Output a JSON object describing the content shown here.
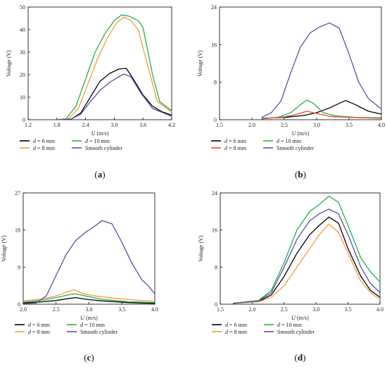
{
  "chart_data": [
    {
      "panel": "a",
      "label_prefix": "(",
      "label_bold": "a",
      "label_suffix": ")",
      "type": "line",
      "xlabel_var": "U",
      "xlabel_unit": "(m/s)",
      "ylabel": "Voltage (V)",
      "xlim": [
        1.2,
        4.2
      ],
      "ylim": [
        0,
        50
      ],
      "xticks": [
        "1.2",
        "1.8",
        "2.4",
        "3.0",
        "3.6",
        "4.2"
      ],
      "yticks": [
        "0",
        "10",
        "20",
        "30",
        "40",
        "50"
      ],
      "legend": [
        {
          "var": "d",
          "text": " = 6 mm"
        },
        {
          "var": "d",
          "text": " = 10 mm"
        },
        {
          "var": "d",
          "text": " = 8 mm"
        },
        {
          "var": "",
          "text": "Smooth cylinder"
        }
      ],
      "series": [
        {
          "color": "#000000",
          "points": [
            [
              1.8,
              0
            ],
            [
              2.1,
              0.3
            ],
            [
              2.3,
              3
            ],
            [
              2.5,
              10
            ],
            [
              2.7,
              17
            ],
            [
              2.9,
              20.5
            ],
            [
              3.1,
              22.5
            ],
            [
              3.25,
              22.8
            ],
            [
              3.4,
              18
            ],
            [
              3.6,
              11
            ],
            [
              3.8,
              6
            ],
            [
              4.0,
              3.5
            ],
            [
              4.2,
              2
            ]
          ]
        },
        {
          "color": "#22b14c",
          "points": [
            [
              1.8,
              0
            ],
            [
              2.0,
              0.5
            ],
            [
              2.2,
              6
            ],
            [
              2.4,
              18
            ],
            [
              2.6,
              30
            ],
            [
              2.8,
              38
            ],
            [
              3.0,
              44
            ],
            [
              3.15,
              46.5
            ],
            [
              3.3,
              46
            ],
            [
              3.5,
              44
            ],
            [
              3.6,
              41
            ],
            [
              3.8,
              20
            ],
            [
              3.95,
              8
            ],
            [
              4.2,
              4
            ]
          ]
        },
        {
          "color": "#f39c3c",
          "points": [
            [
              1.8,
              0
            ],
            [
              2.05,
              0.5
            ],
            [
              2.25,
              5
            ],
            [
              2.45,
              16
            ],
            [
              2.65,
              27
            ],
            [
              2.85,
              36
            ],
            [
              3.05,
              43
            ],
            [
              3.2,
              45.5
            ],
            [
              3.35,
              44
            ],
            [
              3.5,
              40
            ],
            [
              3.7,
              24
            ],
            [
              3.9,
              8
            ],
            [
              4.2,
              3.5
            ]
          ]
        },
        {
          "color": "#5a4fa8",
          "points": [
            [
              1.8,
              0
            ],
            [
              2.1,
              0.3
            ],
            [
              2.3,
              2.5
            ],
            [
              2.5,
              8
            ],
            [
              2.7,
              13
            ],
            [
              2.9,
              16.5
            ],
            [
              3.05,
              18.5
            ],
            [
              3.2,
              20.3
            ],
            [
              3.35,
              19
            ],
            [
              3.55,
              12
            ],
            [
              3.8,
              5
            ],
            [
              4.2,
              1.5
            ]
          ]
        }
      ]
    },
    {
      "panel": "b",
      "label_prefix": "(",
      "label_bold": "b",
      "label_suffix": ")",
      "type": "line",
      "xlabel_var": "U",
      "xlabel_unit": "(m/s)",
      "ylabel": "Voltage (V)",
      "xlim": [
        1.5,
        4.0
      ],
      "ylim": [
        0,
        24
      ],
      "xticks": [
        "1.5",
        "2.0",
        "2.5",
        "3.0",
        "3.5",
        "4.0"
      ],
      "yticks": [
        "0",
        "8",
        "16",
        "24"
      ],
      "legend": [
        {
          "var": "d",
          "text": " = 6 mm"
        },
        {
          "var": "d",
          "text": " = 10 mm"
        },
        {
          "var": "d",
          "text": " = 8 mm"
        },
        {
          "var": "",
          "text": "Smooth cylinder"
        }
      ],
      "series": [
        {
          "color": "#000000",
          "points": [
            [
              2.15,
              0.3
            ],
            [
              2.5,
              0.5
            ],
            [
              2.8,
              0.9
            ],
            [
              3.0,
              1.5
            ],
            [
              3.2,
              2.5
            ],
            [
              3.35,
              3.5
            ],
            [
              3.45,
              4.1
            ],
            [
              3.6,
              3.2
            ],
            [
              3.8,
              1.8
            ],
            [
              4.0,
              1.2
            ]
          ]
        },
        {
          "color": "#22b14c",
          "points": [
            [
              2.15,
              0.2
            ],
            [
              2.4,
              0.5
            ],
            [
              2.6,
              1.5
            ],
            [
              2.75,
              3.2
            ],
            [
              2.85,
              4.2
            ],
            [
              2.95,
              3.5
            ],
            [
              3.1,
              1.5
            ],
            [
              3.3,
              0.8
            ],
            [
              3.6,
              0.5
            ],
            [
              4.0,
              0.4
            ]
          ]
        },
        {
          "color": "#e74c3c",
          "points": [
            [
              2.15,
              0.2
            ],
            [
              2.5,
              0.6
            ],
            [
              2.7,
              1.2
            ],
            [
              2.85,
              1.8
            ],
            [
              3.0,
              1.3
            ],
            [
              3.2,
              0.7
            ],
            [
              3.5,
              0.5
            ],
            [
              4.0,
              0.3
            ]
          ]
        },
        {
          "color": "#5a4fa8",
          "points": [
            [
              2.15,
              0.5
            ],
            [
              2.3,
              1.5
            ],
            [
              2.45,
              4
            ],
            [
              2.6,
              10
            ],
            [
              2.75,
              15.5
            ],
            [
              2.9,
              18.5
            ],
            [
              3.05,
              19.8
            ],
            [
              3.2,
              20.6
            ],
            [
              3.35,
              19.5
            ],
            [
              3.5,
              14
            ],
            [
              3.65,
              8
            ],
            [
              3.8,
              4.5
            ],
            [
              4.0,
              2.3
            ]
          ]
        }
      ]
    },
    {
      "panel": "c",
      "label_prefix": "(",
      "label_bold": "c",
      "label_suffix": ")",
      "type": "line",
      "xlabel_var": "U",
      "xlabel_unit": "(m/s)",
      "ylabel": "Voltage (V)",
      "xlim": [
        2.0,
        4.0
      ],
      "ylim": [
        0,
        27
      ],
      "xticks": [
        "2.0",
        "2.5",
        "3.0",
        "3.5",
        "4.0"
      ],
      "yticks": [
        "0",
        "9",
        "18",
        "27"
      ],
      "legend": [
        {
          "var": "d",
          "text": " = 6 mm"
        },
        {
          "var": "d",
          "text": " = 10 mm"
        },
        {
          "var": "d",
          "text": " = 8 mm"
        },
        {
          "var": "",
          "text": "Smooth cylinder"
        }
      ],
      "series": [
        {
          "color": "#000000",
          "points": [
            [
              2.0,
              0.3
            ],
            [
              2.3,
              0.6
            ],
            [
              2.5,
              0.9
            ],
            [
              2.7,
              1.4
            ],
            [
              2.8,
              1.6
            ],
            [
              2.95,
              1.2
            ],
            [
              3.2,
              0.8
            ],
            [
              3.6,
              0.4
            ],
            [
              4.0,
              0.2
            ]
          ]
        },
        {
          "color": "#22b14c",
          "points": [
            [
              2.0,
              0.5
            ],
            [
              2.3,
              1.0
            ],
            [
              2.5,
              1.6
            ],
            [
              2.7,
              2.3
            ],
            [
              2.8,
              2.5
            ],
            [
              2.95,
              2.0
            ],
            [
              3.2,
              1.2
            ],
            [
              3.6,
              0.6
            ],
            [
              4.0,
              0.4
            ]
          ]
        },
        {
          "color": "#f39c3c",
          "points": [
            [
              2.0,
              0.8
            ],
            [
              2.3,
              1.3
            ],
            [
              2.5,
              2.0
            ],
            [
              2.65,
              2.9
            ],
            [
              2.77,
              3.5
            ],
            [
              2.9,
              2.6
            ],
            [
              3.1,
              2.0
            ],
            [
              3.4,
              1.4
            ],
            [
              3.7,
              1.0
            ],
            [
              4.0,
              0.7
            ]
          ]
        },
        {
          "color": "#5a4fa8",
          "points": [
            [
              2.0,
              0.1
            ],
            [
              2.2,
              0.3
            ],
            [
              2.35,
              2
            ],
            [
              2.5,
              7
            ],
            [
              2.65,
              12
            ],
            [
              2.8,
              15.5
            ],
            [
              2.95,
              17.5
            ],
            [
              3.05,
              18.5
            ],
            [
              3.2,
              20.3
            ],
            [
              3.35,
              19.5
            ],
            [
              3.5,
              15
            ],
            [
              3.65,
              10
            ],
            [
              3.8,
              6
            ],
            [
              3.9,
              4.5
            ],
            [
              4.0,
              2.5
            ]
          ]
        }
      ]
    },
    {
      "panel": "d",
      "label_prefix": "(",
      "label_bold": "d",
      "label_suffix": ")",
      "type": "line",
      "xlabel_var": "U",
      "xlabel_unit": "(m/s)",
      "ylabel": "Voltage (V)",
      "xlim": [
        1.5,
        4.0
      ],
      "ylim": [
        0,
        24
      ],
      "xticks": [
        "1.5",
        "2.0",
        "2.5",
        "3.0",
        "3.5",
        "4.0"
      ],
      "yticks": [
        "0",
        "8",
        "16",
        "24"
      ],
      "legend": [
        {
          "var": "d",
          "text": " = 6 mm"
        },
        {
          "var": "d",
          "text": " = 10 mm"
        },
        {
          "var": "d",
          "text": " = 8 mm"
        },
        {
          "var": "",
          "text": "Smooth cylinder"
        }
      ],
      "series": [
        {
          "color": "#000000",
          "points": [
            [
              1.7,
              0.2
            ],
            [
              2.1,
              0.6
            ],
            [
              2.3,
              2
            ],
            [
              2.5,
              6
            ],
            [
              2.7,
              11
            ],
            [
              2.9,
              15
            ],
            [
              3.05,
              17
            ],
            [
              3.2,
              18.8
            ],
            [
              3.35,
              17.5
            ],
            [
              3.5,
              12
            ],
            [
              3.7,
              6
            ],
            [
              3.85,
              3
            ],
            [
              4.0,
              1.5
            ]
          ]
        },
        {
          "color": "#22b14c",
          "points": [
            [
              1.7,
              0.2
            ],
            [
              2.1,
              0.8
            ],
            [
              2.3,
              3
            ],
            [
              2.5,
              9
            ],
            [
              2.7,
              16
            ],
            [
              2.9,
              20
            ],
            [
              3.05,
              21.5
            ],
            [
              3.2,
              23.3
            ],
            [
              3.35,
              22
            ],
            [
              3.5,
              17
            ],
            [
              3.7,
              10
            ],
            [
              3.85,
              7
            ],
            [
              4.0,
              4.8
            ]
          ]
        },
        {
          "color": "#f39c3c",
          "points": [
            [
              1.7,
              0.2
            ],
            [
              2.1,
              0.5
            ],
            [
              2.3,
              1.5
            ],
            [
              2.5,
              4
            ],
            [
              2.7,
              8
            ],
            [
              2.9,
              12
            ],
            [
              3.05,
              15
            ],
            [
              3.2,
              17.3
            ],
            [
              3.35,
              15.5
            ],
            [
              3.5,
              11
            ],
            [
              3.7,
              5
            ],
            [
              3.85,
              2.5
            ],
            [
              4.0,
              1.0
            ]
          ]
        },
        {
          "color": "#5a4fa8",
          "points": [
            [
              1.7,
              0.2
            ],
            [
              2.1,
              0.7
            ],
            [
              2.3,
              2.5
            ],
            [
              2.5,
              8
            ],
            [
              2.7,
              14
            ],
            [
              2.9,
              18
            ],
            [
              3.05,
              19.5
            ],
            [
              3.2,
              20.5
            ],
            [
              3.35,
              19.5
            ],
            [
              3.5,
              15
            ],
            [
              3.7,
              8
            ],
            [
              3.85,
              4.5
            ],
            [
              4.0,
              2.5
            ]
          ]
        }
      ]
    }
  ]
}
